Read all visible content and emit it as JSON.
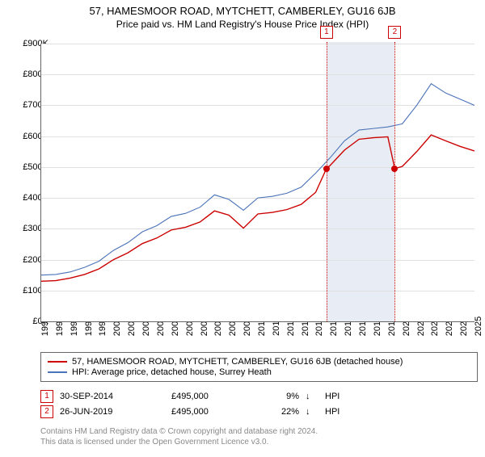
{
  "title": "57, HAMESMOOR ROAD, MYTCHETT, CAMBERLEY, GU16 6JB",
  "subtitle": "Price paid vs. HM Land Registry's House Price Index (HPI)",
  "chart": {
    "type": "line",
    "background_color": "#ffffff",
    "grid_color": "#e0e0e0",
    "axis_color": "#666666",
    "label_fontsize": 11,
    "ylim": [
      0,
      900000
    ],
    "ytick_step": 100000,
    "yticks": [
      "£0K",
      "£100K",
      "£200K",
      "£300K",
      "£400K",
      "£500K",
      "£600K",
      "£700K",
      "£800K",
      "£900K"
    ],
    "x_years": [
      1995,
      1996,
      1997,
      1998,
      1999,
      2000,
      2001,
      2002,
      2003,
      2004,
      2005,
      2006,
      2007,
      2008,
      2009,
      2010,
      2011,
      2012,
      2013,
      2014,
      2015,
      2016,
      2017,
      2018,
      2019,
      2020,
      2021,
      2022,
      2023,
      2024,
      2025
    ],
    "shaded_band": {
      "from": 2014.75,
      "to": 2019.48,
      "fill": "#e8ecf4"
    },
    "series": [
      {
        "name": "HPI: Average price, detached house, Surrey Heath",
        "color": "#4a73b8",
        "width": 1.1,
        "values": [
          [
            1995,
            150000
          ],
          [
            1996,
            152000
          ],
          [
            1997,
            160000
          ],
          [
            1998,
            175000
          ],
          [
            1999,
            195000
          ],
          [
            2000,
            230000
          ],
          [
            2001,
            255000
          ],
          [
            2002,
            290000
          ],
          [
            2003,
            310000
          ],
          [
            2004,
            340000
          ],
          [
            2005,
            350000
          ],
          [
            2006,
            370000
          ],
          [
            2007,
            410000
          ],
          [
            2008,
            395000
          ],
          [
            2009,
            360000
          ],
          [
            2010,
            400000
          ],
          [
            2011,
            405000
          ],
          [
            2012,
            415000
          ],
          [
            2013,
            435000
          ],
          [
            2014,
            480000
          ],
          [
            2015,
            530000
          ],
          [
            2016,
            585000
          ],
          [
            2017,
            620000
          ],
          [
            2018,
            625000
          ],
          [
            2019,
            630000
          ],
          [
            2020,
            640000
          ],
          [
            2021,
            700000
          ],
          [
            2022,
            770000
          ],
          [
            2023,
            740000
          ],
          [
            2024,
            720000
          ],
          [
            2025,
            700000
          ]
        ]
      },
      {
        "name": "57, HAMESMOOR ROAD, MYTCHETT, CAMBERLEY, GU16 6JB (detached house)",
        "color": "#cc0000",
        "width": 1.4,
        "values": [
          [
            1995,
            130000
          ],
          [
            1996,
            132000
          ],
          [
            1997,
            140000
          ],
          [
            1998,
            152000
          ],
          [
            1999,
            170000
          ],
          [
            2000,
            200000
          ],
          [
            2001,
            222000
          ],
          [
            2002,
            252000
          ],
          [
            2003,
            270000
          ],
          [
            2004,
            296000
          ],
          [
            2005,
            305000
          ],
          [
            2006,
            322000
          ],
          [
            2007,
            358000
          ],
          [
            2008,
            344000
          ],
          [
            2009,
            302000
          ],
          [
            2010,
            348000
          ],
          [
            2011,
            353000
          ],
          [
            2012,
            362000
          ],
          [
            2013,
            379000
          ],
          [
            2014,
            418000
          ],
          [
            2014.75,
            495000
          ],
          [
            2015,
            505000
          ],
          [
            2016,
            555000
          ],
          [
            2017,
            590000
          ],
          [
            2018,
            595000
          ],
          [
            2019,
            598000
          ],
          [
            2019.48,
            495000
          ],
          [
            2020,
            502000
          ],
          [
            2021,
            550000
          ],
          [
            2022,
            604000
          ],
          [
            2023,
            585000
          ],
          [
            2024,
            567000
          ],
          [
            2025,
            552000
          ]
        ]
      }
    ],
    "transactions": [
      {
        "marker": "1",
        "year": 2014.75,
        "price": 495000
      },
      {
        "marker": "2",
        "year": 2019.48,
        "price": 495000
      }
    ],
    "vline_color": "#cc0000"
  },
  "legend": {
    "border_color": "#666666",
    "items": [
      {
        "color": "#cc0000",
        "label": "57, HAMESMOOR ROAD, MYTCHETT, CAMBERLEY, GU16 6JB (detached house)"
      },
      {
        "color": "#4a73b8",
        "label": "HPI: Average price, detached house, Surrey Heath"
      }
    ]
  },
  "trans_table": {
    "rows": [
      {
        "marker": "1",
        "date": "30-SEP-2014",
        "price": "£495,000",
        "pct": "9%",
        "arrow": "↓",
        "hpi": "HPI"
      },
      {
        "marker": "2",
        "date": "26-JUN-2019",
        "price": "£495,000",
        "pct": "22%",
        "arrow": "↓",
        "hpi": "HPI"
      }
    ]
  },
  "footer": {
    "line1": "Contains HM Land Registry data © Crown copyright and database right 2024.",
    "line2": "This data is licensed under the Open Government Licence v3.0."
  }
}
